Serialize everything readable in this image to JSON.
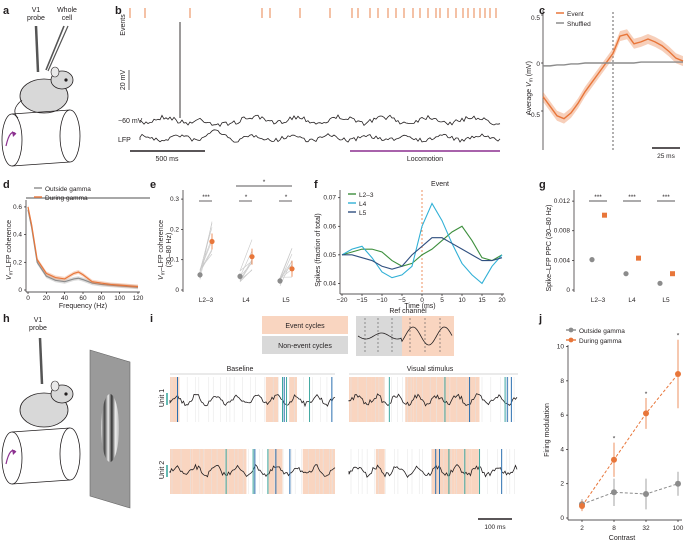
{
  "colors": {
    "gamma": "#e8763a",
    "grey": "#8c8c8c",
    "event_shade": "#f9d5c0",
    "nonevent_shade": "#d9d9d9",
    "locomotion": "#8b2f8f",
    "l23": "#3d8f3d",
    "l4": "#31b0d6",
    "l5": "#2f4f7f",
    "spike_blue": "#2a6fb0",
    "spike_teal": "#3fa8a0"
  },
  "panels": {
    "a": "a",
    "b": "b",
    "c": "c",
    "d": "d",
    "e": "e",
    "f": "f",
    "g": "g",
    "h": "h",
    "i": "i",
    "j": "j"
  },
  "panel_a": {
    "probe": "V1\nprobe",
    "cell": "Whole\ncell"
  },
  "panel_b": {
    "events_label": "Events",
    "vm_label": "−60 mV",
    "lfp_label": "LFP",
    "scale_mv": "20 mV",
    "scale_time": "500 ms",
    "locomotion": "Locomotion"
  },
  "panel_c": {
    "legend_event": "Event",
    "legend_shuffled": "Shuffled",
    "ylabel": "Average V_m (mV)",
    "ticks": [
      "0.5",
      "0",
      "−0.5"
    ],
    "scale_time": "25 ms"
  },
  "panel_d": {
    "legend_outside": "Outside gamma",
    "legend_during": "During gamma",
    "ylabel": "V_m–LFP coherence",
    "xlabel": "Frequency (Hz)"
  },
  "panel_e": {
    "ylabel1": "V_m–LFP coherence",
    "ylabel2": "(30–80 Hz)",
    "stars1": "***",
    "stars2": "*",
    "stars3": "*",
    "stars4": "*"
  },
  "panel_f": {
    "legend": [
      "L2–3",
      "L4",
      "L5"
    ],
    "event_label": "Event",
    "ylabel": "Spikes (fraction of total)",
    "xlabel": "Time (ms)"
  },
  "panel_g": {
    "ylabel": "Spike–LFP PPC (30–80 Hz)",
    "stars": [
      "***",
      "***",
      "***"
    ]
  },
  "panel_h": {
    "probe": "V1\nprobe"
  },
  "panel_i": {
    "event_cycles": "Event cycles",
    "nonevent_cycles": "Non-event cycles",
    "ref_channel": "Ref channel",
    "baseline": "Baseline",
    "visual_stimulus": "Visual stimulus",
    "unit1": "Unit 1",
    "unit2": "Unit 2",
    "scale_time": "100 ms"
  },
  "panel_j": {
    "legend_outside": "Outside gamma",
    "legend_during": "During gamma",
    "ylabel": "Firing modulation",
    "xlabel": "Contrast",
    "stars": [
      "*",
      "*",
      "*"
    ]
  },
  "chart_data": [
    {
      "panel": "c",
      "type": "line",
      "x": [
        -50,
        -45,
        -40,
        -35,
        -30,
        -25,
        -20,
        -15,
        -10,
        -5,
        0,
        5,
        10,
        15,
        20,
        25,
        30,
        35,
        40,
        45,
        50
      ],
      "series": [
        {
          "name": "Event",
          "values": [
            -0.35,
            -0.45,
            -0.55,
            -0.58,
            -0.52,
            -0.42,
            -0.3,
            -0.2,
            -0.1,
            0.0,
            0.1,
            0.28,
            0.3,
            0.2,
            0.22,
            0.25,
            0.22,
            0.18,
            0.12,
            0.05,
            0.02
          ]
        },
        {
          "name": "Shuffled",
          "values": [
            -0.03,
            -0.03,
            -0.02,
            -0.02,
            -0.01,
            -0.01,
            0.0,
            0.0,
            0.0,
            0.0,
            0.0,
            0.0,
            0.0,
            0.0,
            0.01,
            0.01,
            0.01,
            0.01,
            0.01,
            0.01,
            0.01
          ]
        }
      ],
      "yticks": [
        0.5,
        0,
        -0.5
      ],
      "ylim": [
        -0.8,
        0.55
      ]
    },
    {
      "panel": "d",
      "type": "line",
      "xlabel": "Frequency (Hz)",
      "ylabel": "V_m–LFP coherence",
      "x": [
        0,
        4,
        10,
        20,
        30,
        40,
        50,
        55,
        60,
        70,
        80,
        90,
        100,
        110,
        120
      ],
      "series": [
        {
          "name": "Outside gamma",
          "values": [
            0.58,
            0.45,
            0.2,
            0.1,
            0.07,
            0.06,
            0.08,
            0.085,
            0.075,
            0.05,
            0.04,
            0.035,
            0.03,
            0.025,
            0.02
          ]
        },
        {
          "name": "During gamma",
          "values": [
            0.6,
            0.47,
            0.22,
            0.12,
            0.09,
            0.08,
            0.12,
            0.13,
            0.11,
            0.06,
            0.05,
            0.04,
            0.035,
            0.03,
            0.025
          ]
        }
      ],
      "xticks": [
        0,
        20,
        40,
        60,
        80,
        100,
        120
      ],
      "yticks": [
        0,
        0.2,
        0.4,
        0.6
      ],
      "ylim": [
        0,
        0.65
      ]
    },
    {
      "panel": "e",
      "type": "scatter",
      "categories": [
        "L2–3",
        "L4",
        "L5"
      ],
      "series": [
        {
          "name": "Outside gamma",
          "values": [
            0.05,
            0.045,
            0.03
          ]
        },
        {
          "name": "During gamma",
          "values": [
            0.16,
            0.11,
            0.07
          ]
        }
      ],
      "yticks": [
        0,
        0.1,
        0.2,
        0.3
      ],
      "ylim": [
        0,
        0.33
      ]
    },
    {
      "panel": "f",
      "type": "line",
      "xlabel": "Time (ms)",
      "ylabel": "Spikes (fraction of total)",
      "x": [
        -20,
        -17.5,
        -15,
        -12.5,
        -10,
        -7.5,
        -5,
        -2.5,
        0,
        2.5,
        5,
        7.5,
        10,
        12.5,
        15,
        17.5,
        20
      ],
      "series": [
        {
          "name": "L2–3",
          "values": [
            0.05,
            0.051,
            0.052,
            0.052,
            0.051,
            0.048,
            0.046,
            0.047,
            0.05,
            0.052,
            0.055,
            0.058,
            0.06,
            0.055,
            0.049,
            0.048,
            0.05
          ]
        },
        {
          "name": "L4",
          "values": [
            0.05,
            0.052,
            0.053,
            0.049,
            0.044,
            0.042,
            0.043,
            0.046,
            0.06,
            0.068,
            0.062,
            0.054,
            0.047,
            0.043,
            0.04,
            0.046,
            0.05
          ]
        },
        {
          "name": "L5",
          "values": [
            0.05,
            0.05,
            0.049,
            0.048,
            0.046,
            0.045,
            0.046,
            0.05,
            0.053,
            0.056,
            0.056,
            0.054,
            0.052,
            0.05,
            0.048,
            0.048,
            0.049
          ]
        }
      ],
      "xticks": [
        -20,
        -15,
        -10,
        -5,
        0,
        5,
        10,
        15,
        20
      ],
      "yticks": [
        0.04,
        0.05,
        0.06,
        0.07
      ],
      "ylim": [
        0.037,
        0.072
      ]
    },
    {
      "panel": "g",
      "type": "scatter",
      "categories": [
        "L2–3",
        "L4",
        "L5"
      ],
      "series": [
        {
          "name": "Outside gamma",
          "values": [
            0.0041,
            0.0022,
            0.0009
          ]
        },
        {
          "name": "During gamma",
          "values": [
            0.0101,
            0.0043,
            0.0022
          ]
        }
      ],
      "yticks": [
        0,
        0.004,
        0.008,
        0.012
      ],
      "ylim": [
        0,
        0.0135
      ]
    },
    {
      "panel": "j",
      "type": "line",
      "xlabel": "Contrast",
      "ylabel": "Firing modulation",
      "categories": [
        "2",
        "8",
        "32",
        "100"
      ],
      "series": [
        {
          "name": "Outside gamma",
          "values": [
            0.8,
            1.5,
            1.4,
            2.0
          ]
        },
        {
          "name": "During gamma",
          "values": [
            0.7,
            3.4,
            6.1,
            8.4
          ]
        }
      ],
      "yticks": [
        0,
        2,
        4,
        6,
        8,
        10
      ],
      "ylim": [
        0,
        10.5
      ]
    }
  ]
}
